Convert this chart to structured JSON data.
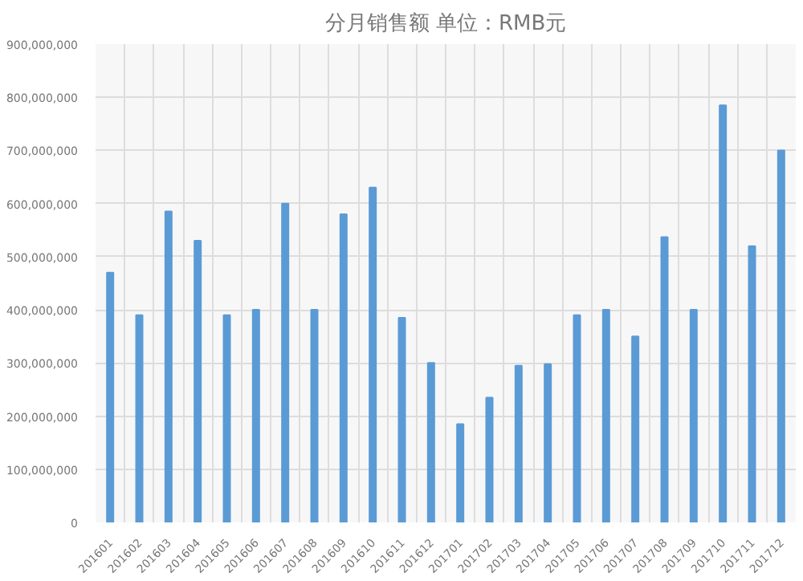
{
  "chart_data": {
    "type": "bar",
    "title": "分月销售额 单位：RMB元",
    "categories": [
      "201601",
      "201602",
      "201603",
      "201604",
      "201605",
      "201606",
      "201607",
      "201608",
      "201609",
      "201610",
      "201611",
      "201612",
      "201701",
      "201702",
      "201703",
      "201704",
      "201705",
      "201706",
      "201707",
      "201708",
      "201709",
      "201710",
      "201711",
      "201712"
    ],
    "values": [
      470000000,
      390000000,
      585000000,
      530000000,
      390000000,
      400000000,
      600000000,
      400000000,
      580000000,
      630000000,
      385000000,
      300000000,
      185000000,
      235000000,
      295000000,
      298000000,
      390000000,
      400000000,
      350000000,
      537000000,
      400000000,
      785000000,
      520000000,
      700000000
    ],
    "color": "#5b9bd5",
    "ylim": [
      0,
      900000000
    ],
    "yticks": [
      0,
      {
        "value": 100000000,
        "label": "100,000,000"
      },
      {
        "value": 200000000,
        "label": "200,000,000"
      },
      {
        "value": 300000000,
        "label": "300,000,000"
      },
      {
        "value": 400000000,
        "label": "400,000,000"
      },
      {
        "value": 500000000,
        "label": "500,000,000"
      },
      {
        "value": 600000000,
        "label": "600,000,000"
      },
      {
        "value": 700000000,
        "label": "700,000,000"
      },
      {
        "value": 800000000,
        "label": "800,000,000"
      },
      {
        "value": 900000000,
        "label": "900,000,000"
      }
    ],
    "grid": true
  }
}
